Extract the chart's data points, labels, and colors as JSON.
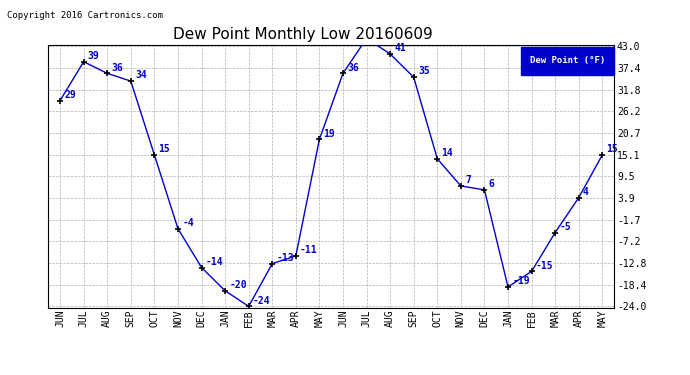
{
  "title": "Dew Point Monthly Low 20160609",
  "copyright": "Copyright 2016 Cartronics.com",
  "legend_label": "Dew Point (°F)",
  "x_labels": [
    "JUN",
    "JUL",
    "AUG",
    "SEP",
    "OCT",
    "NOV",
    "DEC",
    "JAN",
    "FEB",
    "MAR",
    "APR",
    "MAY",
    "JUN",
    "JUL",
    "AUG",
    "SEP",
    "OCT",
    "NOV",
    "DEC",
    "JAN",
    "FEB",
    "MAR",
    "APR",
    "MAY"
  ],
  "y_values": [
    29,
    39,
    36,
    34,
    15,
    -4,
    -14,
    -20,
    -24,
    -13,
    -11,
    19,
    36,
    45,
    41,
    35,
    14,
    7,
    6,
    -19,
    -15,
    -5,
    4,
    15
  ],
  "y_ticks": [
    43.0,
    37.4,
    31.8,
    26.2,
    20.7,
    15.1,
    9.5,
    3.9,
    -1.7,
    -7.2,
    -12.8,
    -18.4,
    -24.0
  ],
  "line_color": "#0000cc",
  "marker": "+",
  "marker_color": "black",
  "bg_color": "#ffffff",
  "grid_color": "#b0b0b0",
  "label_color": "#0000cc",
  "legend_bg": "#0000cc",
  "legend_text_color": "#ffffff",
  "title_fontsize": 11,
  "tick_fontsize": 7,
  "annotation_fontsize": 7,
  "copyright_fontsize": 6.5
}
